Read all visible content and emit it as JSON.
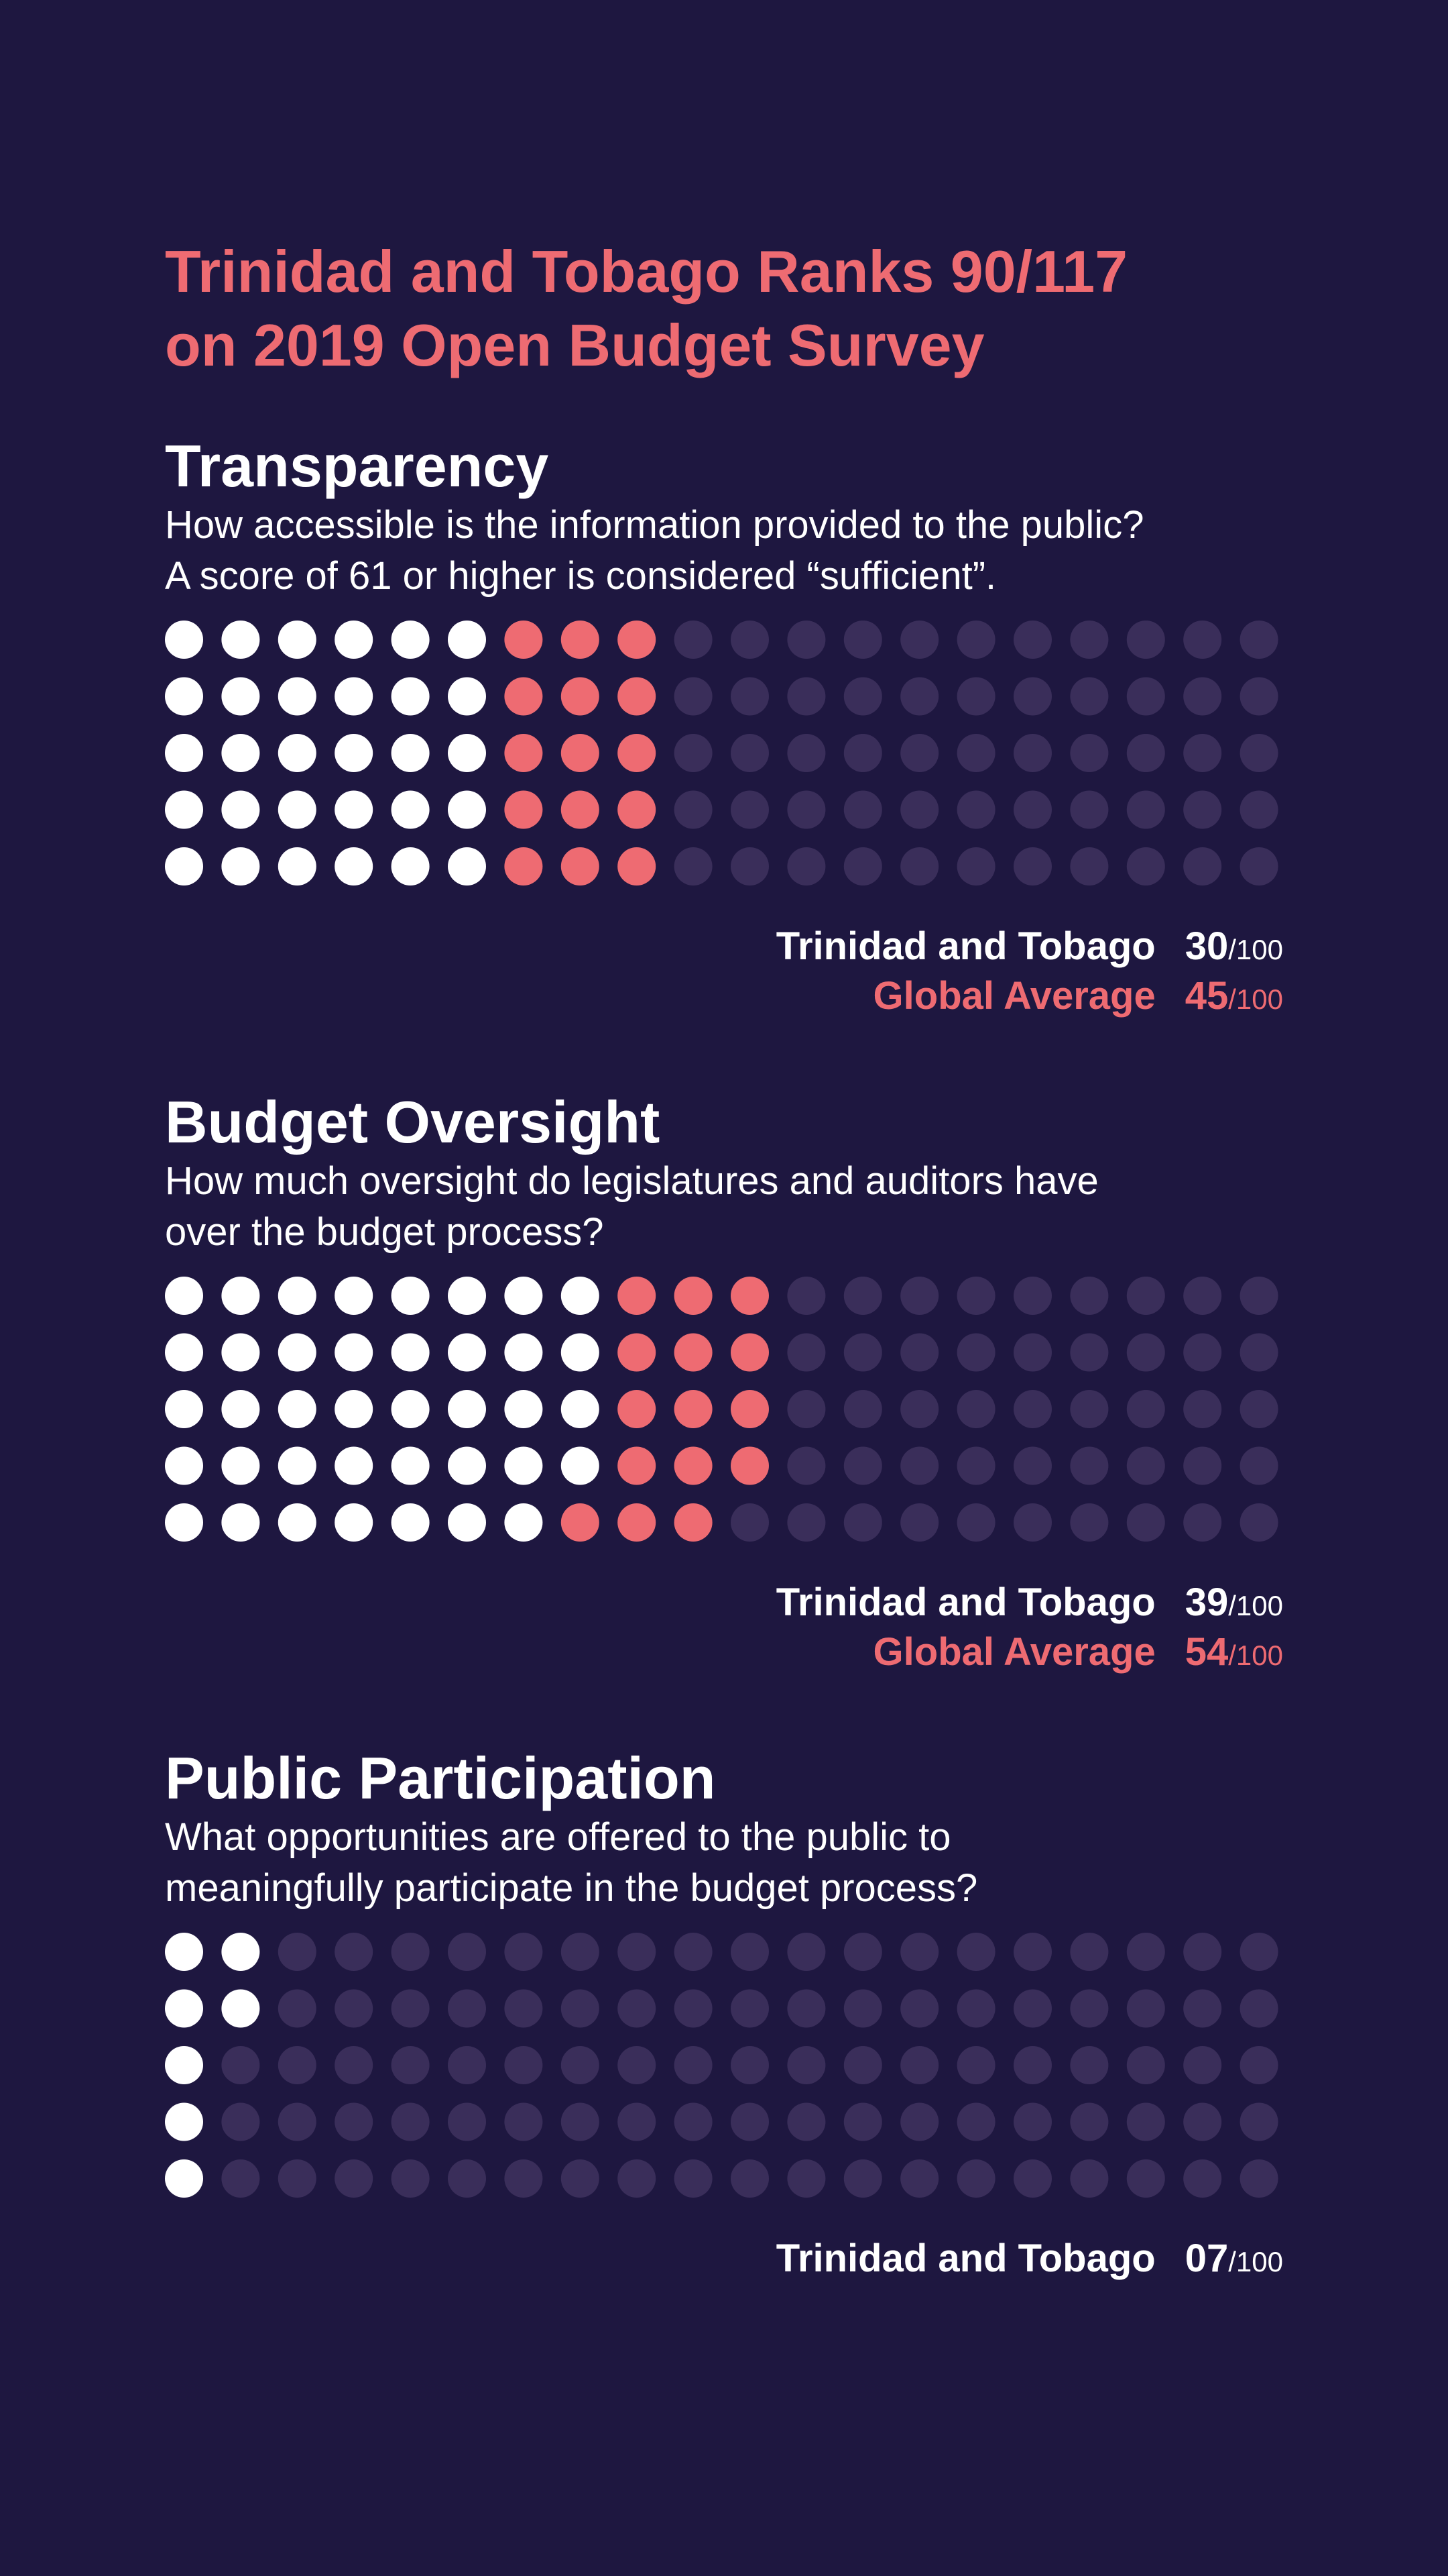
{
  "title": {
    "line1": "Trinidad and Tobago Ranks 90/117",
    "line2": "on 2019 Open Budget Survey"
  },
  "colors": {
    "background": "#1e1740",
    "country": "#ffffff",
    "global": "#ee6b72",
    "empty": "#3a2e5a"
  },
  "chart_data": [
    {
      "type": "dot-matrix",
      "title": "Transparency",
      "description": [
        "How accessible is the information provided to the public?",
        "A score of 61 or higher is considered “sufficient”."
      ],
      "total": 100,
      "series": [
        {
          "name": "Trinidad and Tobago",
          "value": 30,
          "value_label": "30",
          "max_label": "/100"
        },
        {
          "name": "Global Average",
          "value": 45,
          "value_label": "45",
          "max_label": "/100"
        }
      ]
    },
    {
      "type": "dot-matrix",
      "title": "Budget Oversight",
      "description": [
        "How much oversight do legislatures and auditors have",
        "over the budget process?"
      ],
      "total": 100,
      "series": [
        {
          "name": "Trinidad and Tobago",
          "value": 39,
          "value_label": "39",
          "max_label": "/100"
        },
        {
          "name": "Global Average",
          "value": 54,
          "value_label": "54",
          "max_label": "/100"
        }
      ]
    },
    {
      "type": "dot-matrix",
      "title": "Public Participation",
      "description": [
        "What opportunities are offered to the public to",
        "meaningfully participate in the budget process?"
      ],
      "total": 100,
      "series": [
        {
          "name": "Trinidad and Tobago",
          "value": 7,
          "value_label": "07",
          "max_label": "/100"
        }
      ]
    }
  ]
}
